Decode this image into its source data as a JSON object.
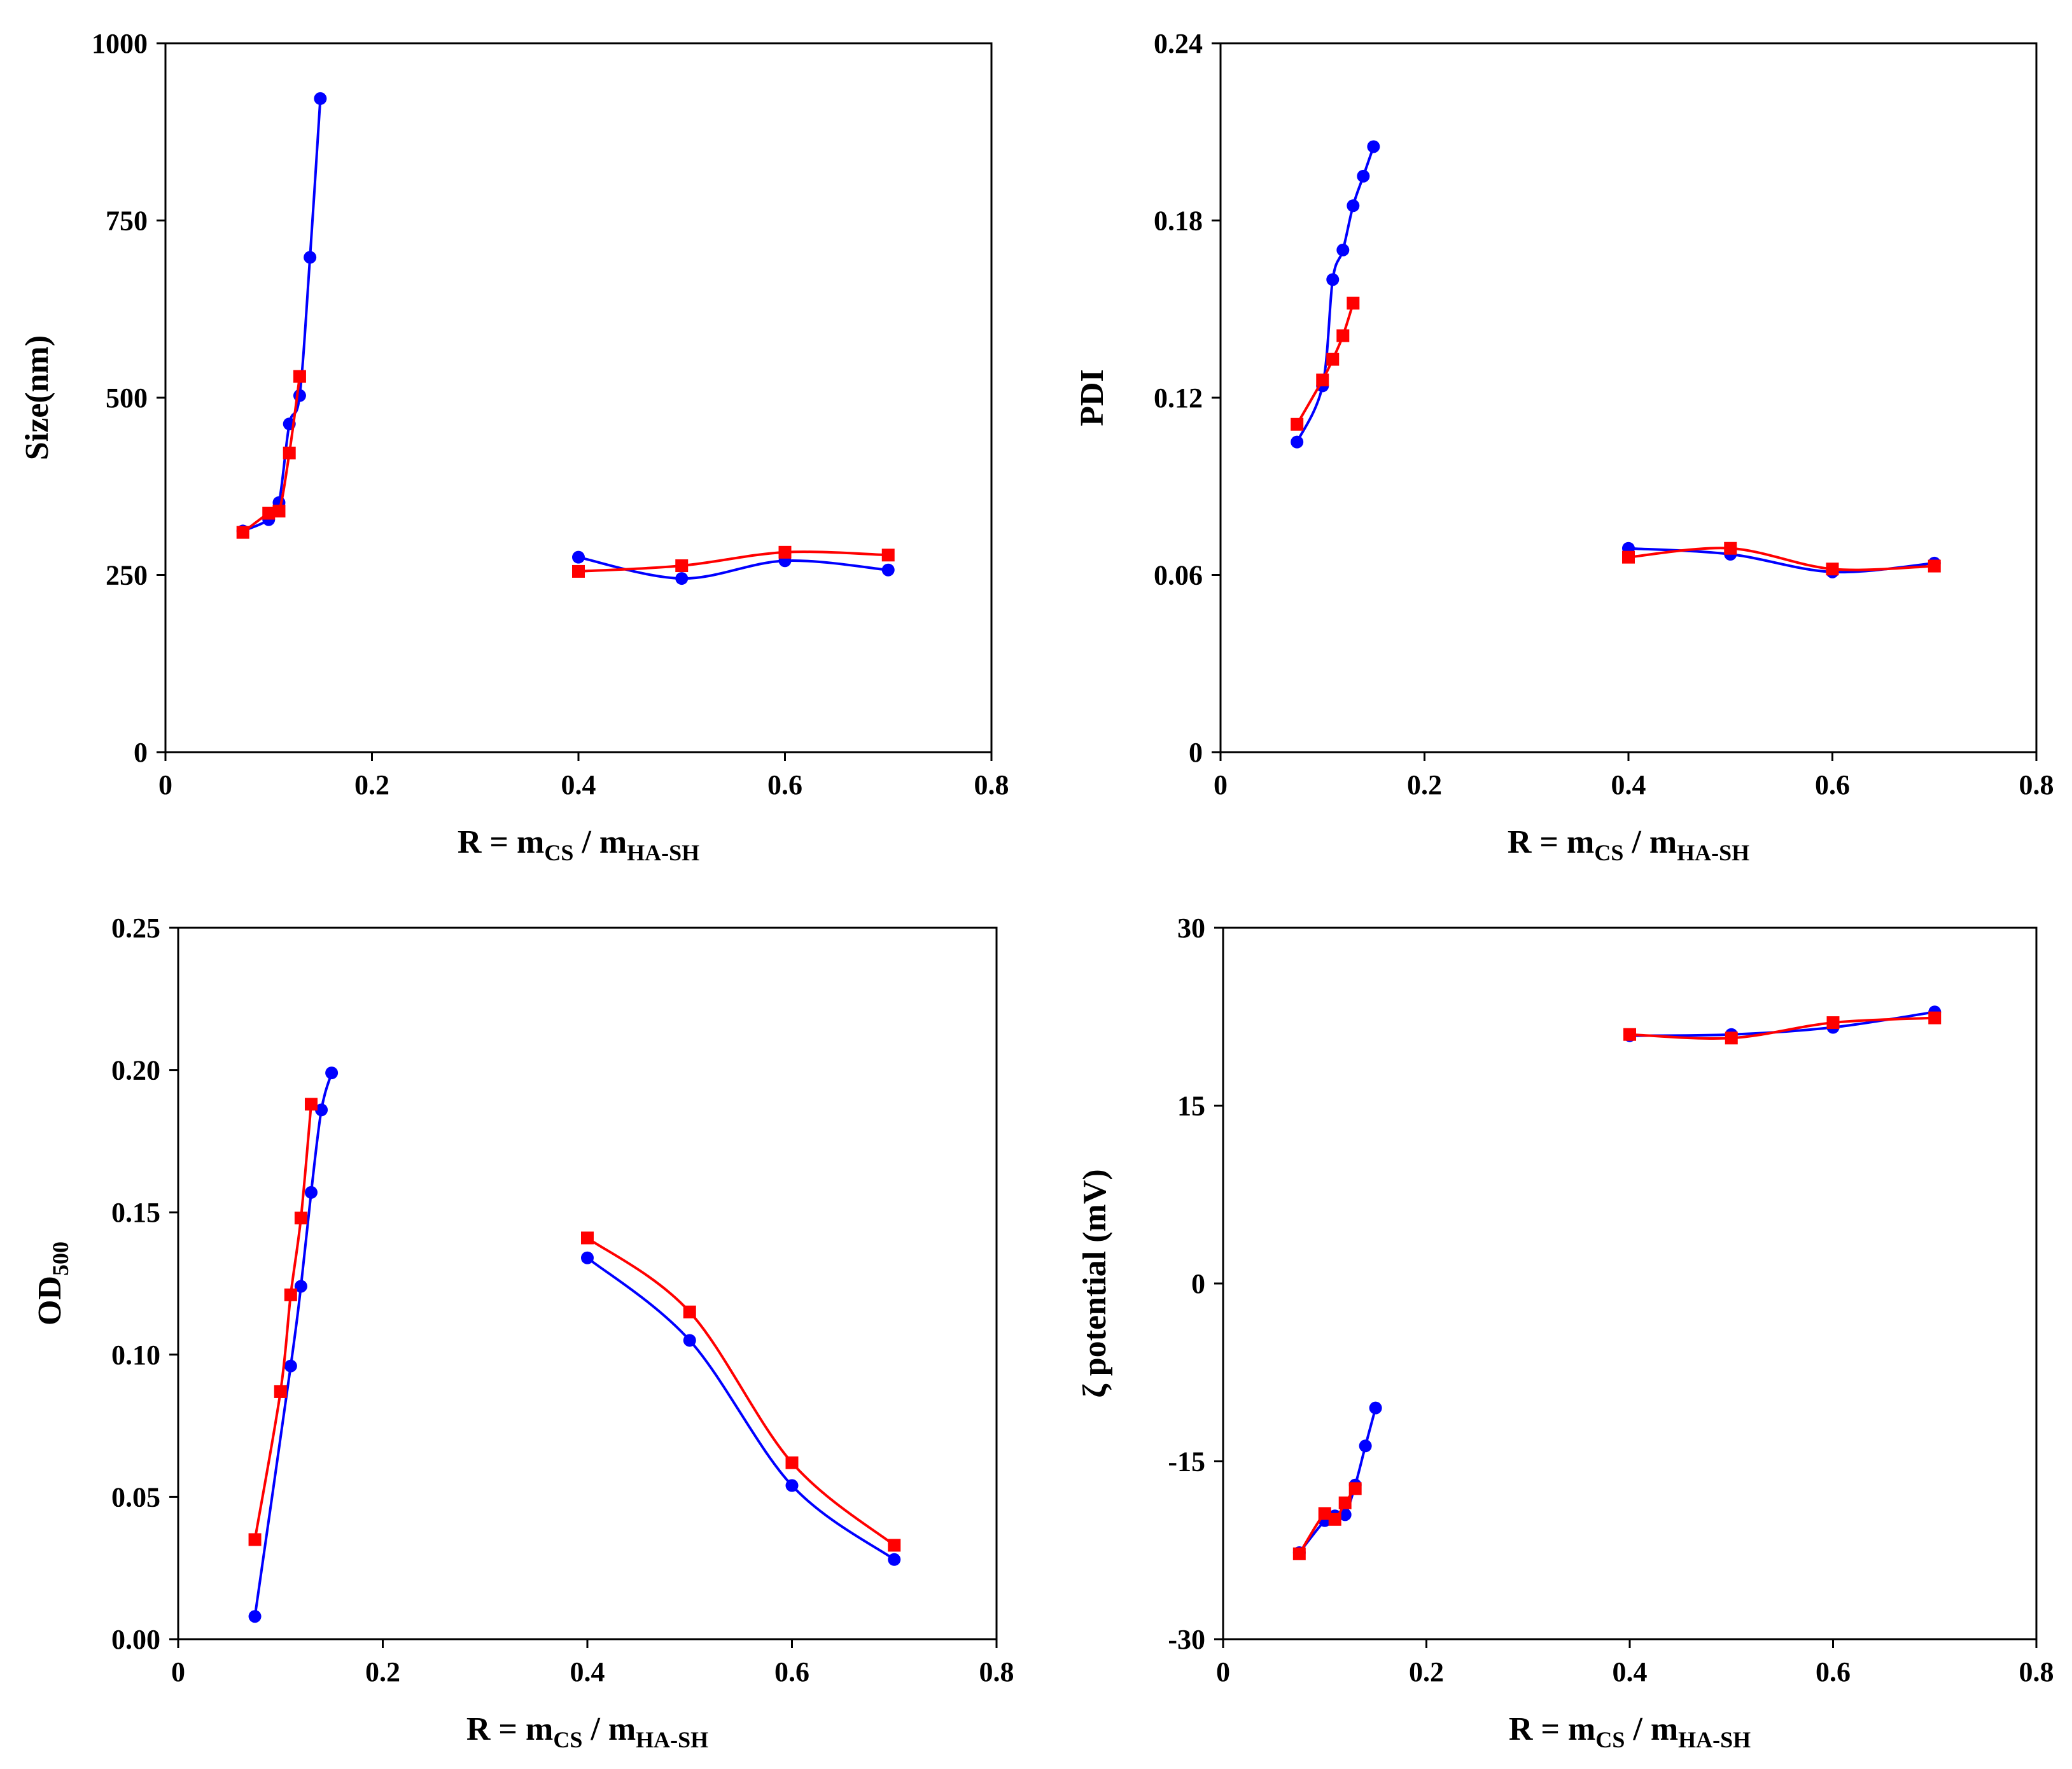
{
  "colors": {
    "series_blue": "#0000ff",
    "series_red": "#ff0000",
    "axis": "#000000"
  },
  "chart_data": [
    {
      "id": "size",
      "type": "line",
      "ylabel": "Size(nm)",
      "xlabel": {
        "main": "R = m",
        "sub1": "CS",
        "mid": " / m",
        "sub2": "HA-SH"
      },
      "xlim": [
        0,
        0.8
      ],
      "ylim": [
        0,
        1000
      ],
      "xticks": [
        0,
        0.2,
        0.4,
        0.6,
        0.8
      ],
      "xtick_labels": [
        "0",
        "0.2",
        "0.4",
        "0.6",
        "0.8"
      ],
      "yticks": [
        0,
        250,
        500,
        750,
        1000
      ],
      "ytick_labels": [
        "0",
        "250",
        "500",
        "750",
        "1000"
      ],
      "series": [
        {
          "name": "blue-circles",
          "color": "#0000ff",
          "marker": "circle",
          "segments": [
            {
              "x": [
                0.075,
                0.1,
                0.11,
                0.12,
                0.13,
                0.14,
                0.15
              ],
              "y": [
                312,
                328,
                352,
                463,
                503,
                698,
                922
              ]
            },
            {
              "x": [
                0.4,
                0.5,
                0.6,
                0.7
              ],
              "y": [
                275,
                245,
                270,
                257
              ]
            }
          ]
        },
        {
          "name": "red-squares",
          "color": "#ff0000",
          "marker": "square",
          "segments": [
            {
              "x": [
                0.075,
                0.1,
                0.11,
                0.12,
                0.13
              ],
              "y": [
                310,
                337,
                340,
                422,
                530
              ]
            },
            {
              "x": [
                0.4,
                0.5,
                0.6,
                0.7
              ],
              "y": [
                255,
                263,
                282,
                278
              ]
            }
          ]
        }
      ]
    },
    {
      "id": "pdi",
      "type": "line",
      "ylabel": "PDI",
      "xlabel": {
        "main": "R = m",
        "sub1": "CS",
        "mid": " / m",
        "sub2": "HA-SH"
      },
      "xlim": [
        0,
        0.8
      ],
      "ylim": [
        0,
        0.24
      ],
      "xticks": [
        0,
        0.2,
        0.4,
        0.6,
        0.8
      ],
      "xtick_labels": [
        "0",
        "0.2",
        "0.4",
        "0.6",
        "0.8"
      ],
      "yticks": [
        0,
        0.06,
        0.12,
        0.18,
        0.24
      ],
      "ytick_labels": [
        "0",
        "0.06",
        "0.12",
        "0.18",
        "0.24"
      ],
      "series": [
        {
          "name": "blue-circles",
          "color": "#0000ff",
          "marker": "circle",
          "segments": [
            {
              "x": [
                0.075,
                0.1,
                0.11,
                0.12,
                0.13,
                0.14,
                0.15
              ],
              "y": [
                0.105,
                0.124,
                0.16,
                0.17,
                0.185,
                0.195,
                0.205
              ]
            },
            {
              "x": [
                0.4,
                0.5,
                0.6,
                0.7
              ],
              "y": [
                0.069,
                0.067,
                0.061,
                0.064
              ]
            }
          ]
        },
        {
          "name": "red-squares",
          "color": "#ff0000",
          "marker": "square",
          "segments": [
            {
              "x": [
                0.075,
                0.1,
                0.11,
                0.12,
                0.13
              ],
              "y": [
                0.111,
                0.126,
                0.133,
                0.141,
                0.152
              ]
            },
            {
              "x": [
                0.4,
                0.5,
                0.6,
                0.7
              ],
              "y": [
                0.066,
                0.069,
                0.062,
                0.063
              ]
            }
          ]
        }
      ]
    },
    {
      "id": "od500",
      "type": "line",
      "ylabel": {
        "main": "OD",
        "sub": "500"
      },
      "xlabel": {
        "main": "R = m",
        "sub1": "CS",
        "mid": " / m",
        "sub2": "HA-SH"
      },
      "xlim": [
        0,
        0.8
      ],
      "ylim": [
        0,
        0.25
      ],
      "xticks": [
        0,
        0.2,
        0.4,
        0.6,
        0.8
      ],
      "xtick_labels": [
        "0",
        "0.2",
        "0.4",
        "0.6",
        "0.8"
      ],
      "yticks": [
        0,
        0.05,
        0.1,
        0.15,
        0.2,
        0.25
      ],
      "ytick_labels": [
        "0.00",
        "0.05",
        "0.10",
        "0.15",
        "0.20",
        "0.25"
      ],
      "series": [
        {
          "name": "blue-circles",
          "color": "#0000ff",
          "marker": "circle",
          "segments": [
            {
              "x": [
                0.075,
                0.11,
                0.12,
                0.13,
                0.14,
                0.15
              ],
              "y": [
                0.008,
                0.096,
                0.124,
                0.157,
                0.186,
                0.199
              ]
            },
            {
              "x": [
                0.4,
                0.5,
                0.6,
                0.7
              ],
              "y": [
                0.134,
                0.105,
                0.054,
                0.028
              ]
            }
          ]
        },
        {
          "name": "red-squares",
          "color": "#ff0000",
          "marker": "square",
          "segments": [
            {
              "x": [
                0.075,
                0.1,
                0.11,
                0.12,
                0.13
              ],
              "y": [
                0.035,
                0.087,
                0.121,
                0.148,
                0.188
              ]
            },
            {
              "x": [
                0.4,
                0.5,
                0.6,
                0.7
              ],
              "y": [
                0.141,
                0.115,
                0.062,
                0.033
              ]
            }
          ]
        }
      ]
    },
    {
      "id": "zeta",
      "type": "line",
      "ylabel": "ζ potential (mV)",
      "xlabel": {
        "main": "R = m",
        "sub1": "CS",
        "mid": " / m",
        "sub2": "HA-SH"
      },
      "xlim": [
        0,
        0.8
      ],
      "ylim": [
        -30,
        30
      ],
      "xticks": [
        0,
        0.2,
        0.4,
        0.6,
        0.8
      ],
      "xtick_labels": [
        "0",
        "0.2",
        "0.4",
        "0.6",
        "0.8"
      ],
      "yticks": [
        -30,
        -15,
        0,
        15,
        30
      ],
      "ytick_labels": [
        "-30",
        "-15",
        "0",
        "15",
        "30"
      ],
      "series": [
        {
          "name": "blue-circles",
          "color": "#0000ff",
          "marker": "circle",
          "segments": [
            {
              "x": [
                0.075,
                0.1,
                0.11,
                0.12,
                0.13,
                0.14,
                0.15
              ],
              "y": [
                -22.7,
                -20.0,
                -19.6,
                -19.5,
                -17.0,
                -13.7,
                -10.5
              ]
            },
            {
              "x": [
                0.4,
                0.5,
                0.6,
                0.7
              ],
              "y": [
                20.9,
                21.0,
                21.6,
                22.9
              ]
            }
          ]
        },
        {
          "name": "red-squares",
          "color": "#ff0000",
          "marker": "square",
          "segments": [
            {
              "x": [
                0.075,
                0.1,
                0.11,
                0.12,
                0.13
              ],
              "y": [
                -22.8,
                -19.4,
                -19.9,
                -18.5,
                -17.3
              ]
            },
            {
              "x": [
                0.4,
                0.5,
                0.6,
                0.7
              ],
              "y": [
                21.0,
                20.7,
                22.0,
                22.4
              ]
            }
          ]
        }
      ]
    }
  ]
}
